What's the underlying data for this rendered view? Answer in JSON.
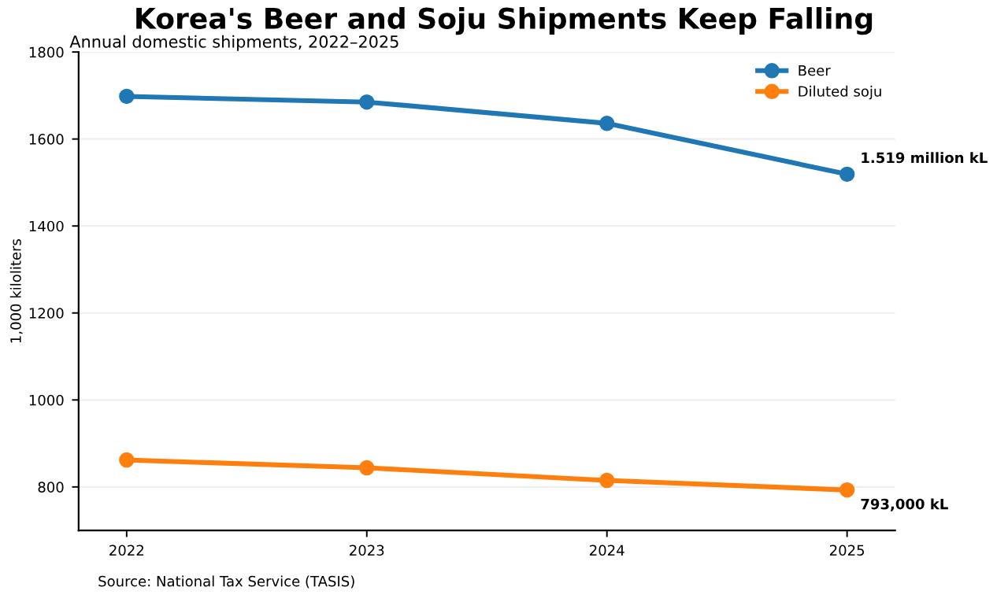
{
  "chart_data": {
    "type": "line",
    "title": "Korea's Beer and Soju Shipments Keep Falling",
    "subtitle": "Annual domestic shipments, 2022–2025",
    "ylabel": "1,000 kiloliters",
    "x": [
      2022,
      2023,
      2024,
      2025
    ],
    "series": [
      {
        "name": "Beer",
        "color": "#1f77b4",
        "values": [
          1698,
          1685,
          1636,
          1519
        ]
      },
      {
        "name": "Diluted soju",
        "color": "#ff7f0e",
        "values": [
          862,
          844,
          815,
          793
        ]
      }
    ],
    "xlim": [
      2021.8,
      2025.2
    ],
    "xticks": [
      2022,
      2023,
      2024,
      2025
    ],
    "ylim": [
      700,
      1800
    ],
    "yticks": [
      800,
      1000,
      1200,
      1400,
      1600,
      1800
    ],
    "grid": "y",
    "legend": "top right",
    "marker": "circle",
    "line_style": "solid",
    "annotations": [
      {
        "text": "1.519 million kL",
        "x": 2025,
        "y": 1519
      },
      {
        "text": "793,000 kL",
        "x": 2025,
        "y": 793
      },
      "Source: National Tax Service (TASIS)"
    ]
  }
}
